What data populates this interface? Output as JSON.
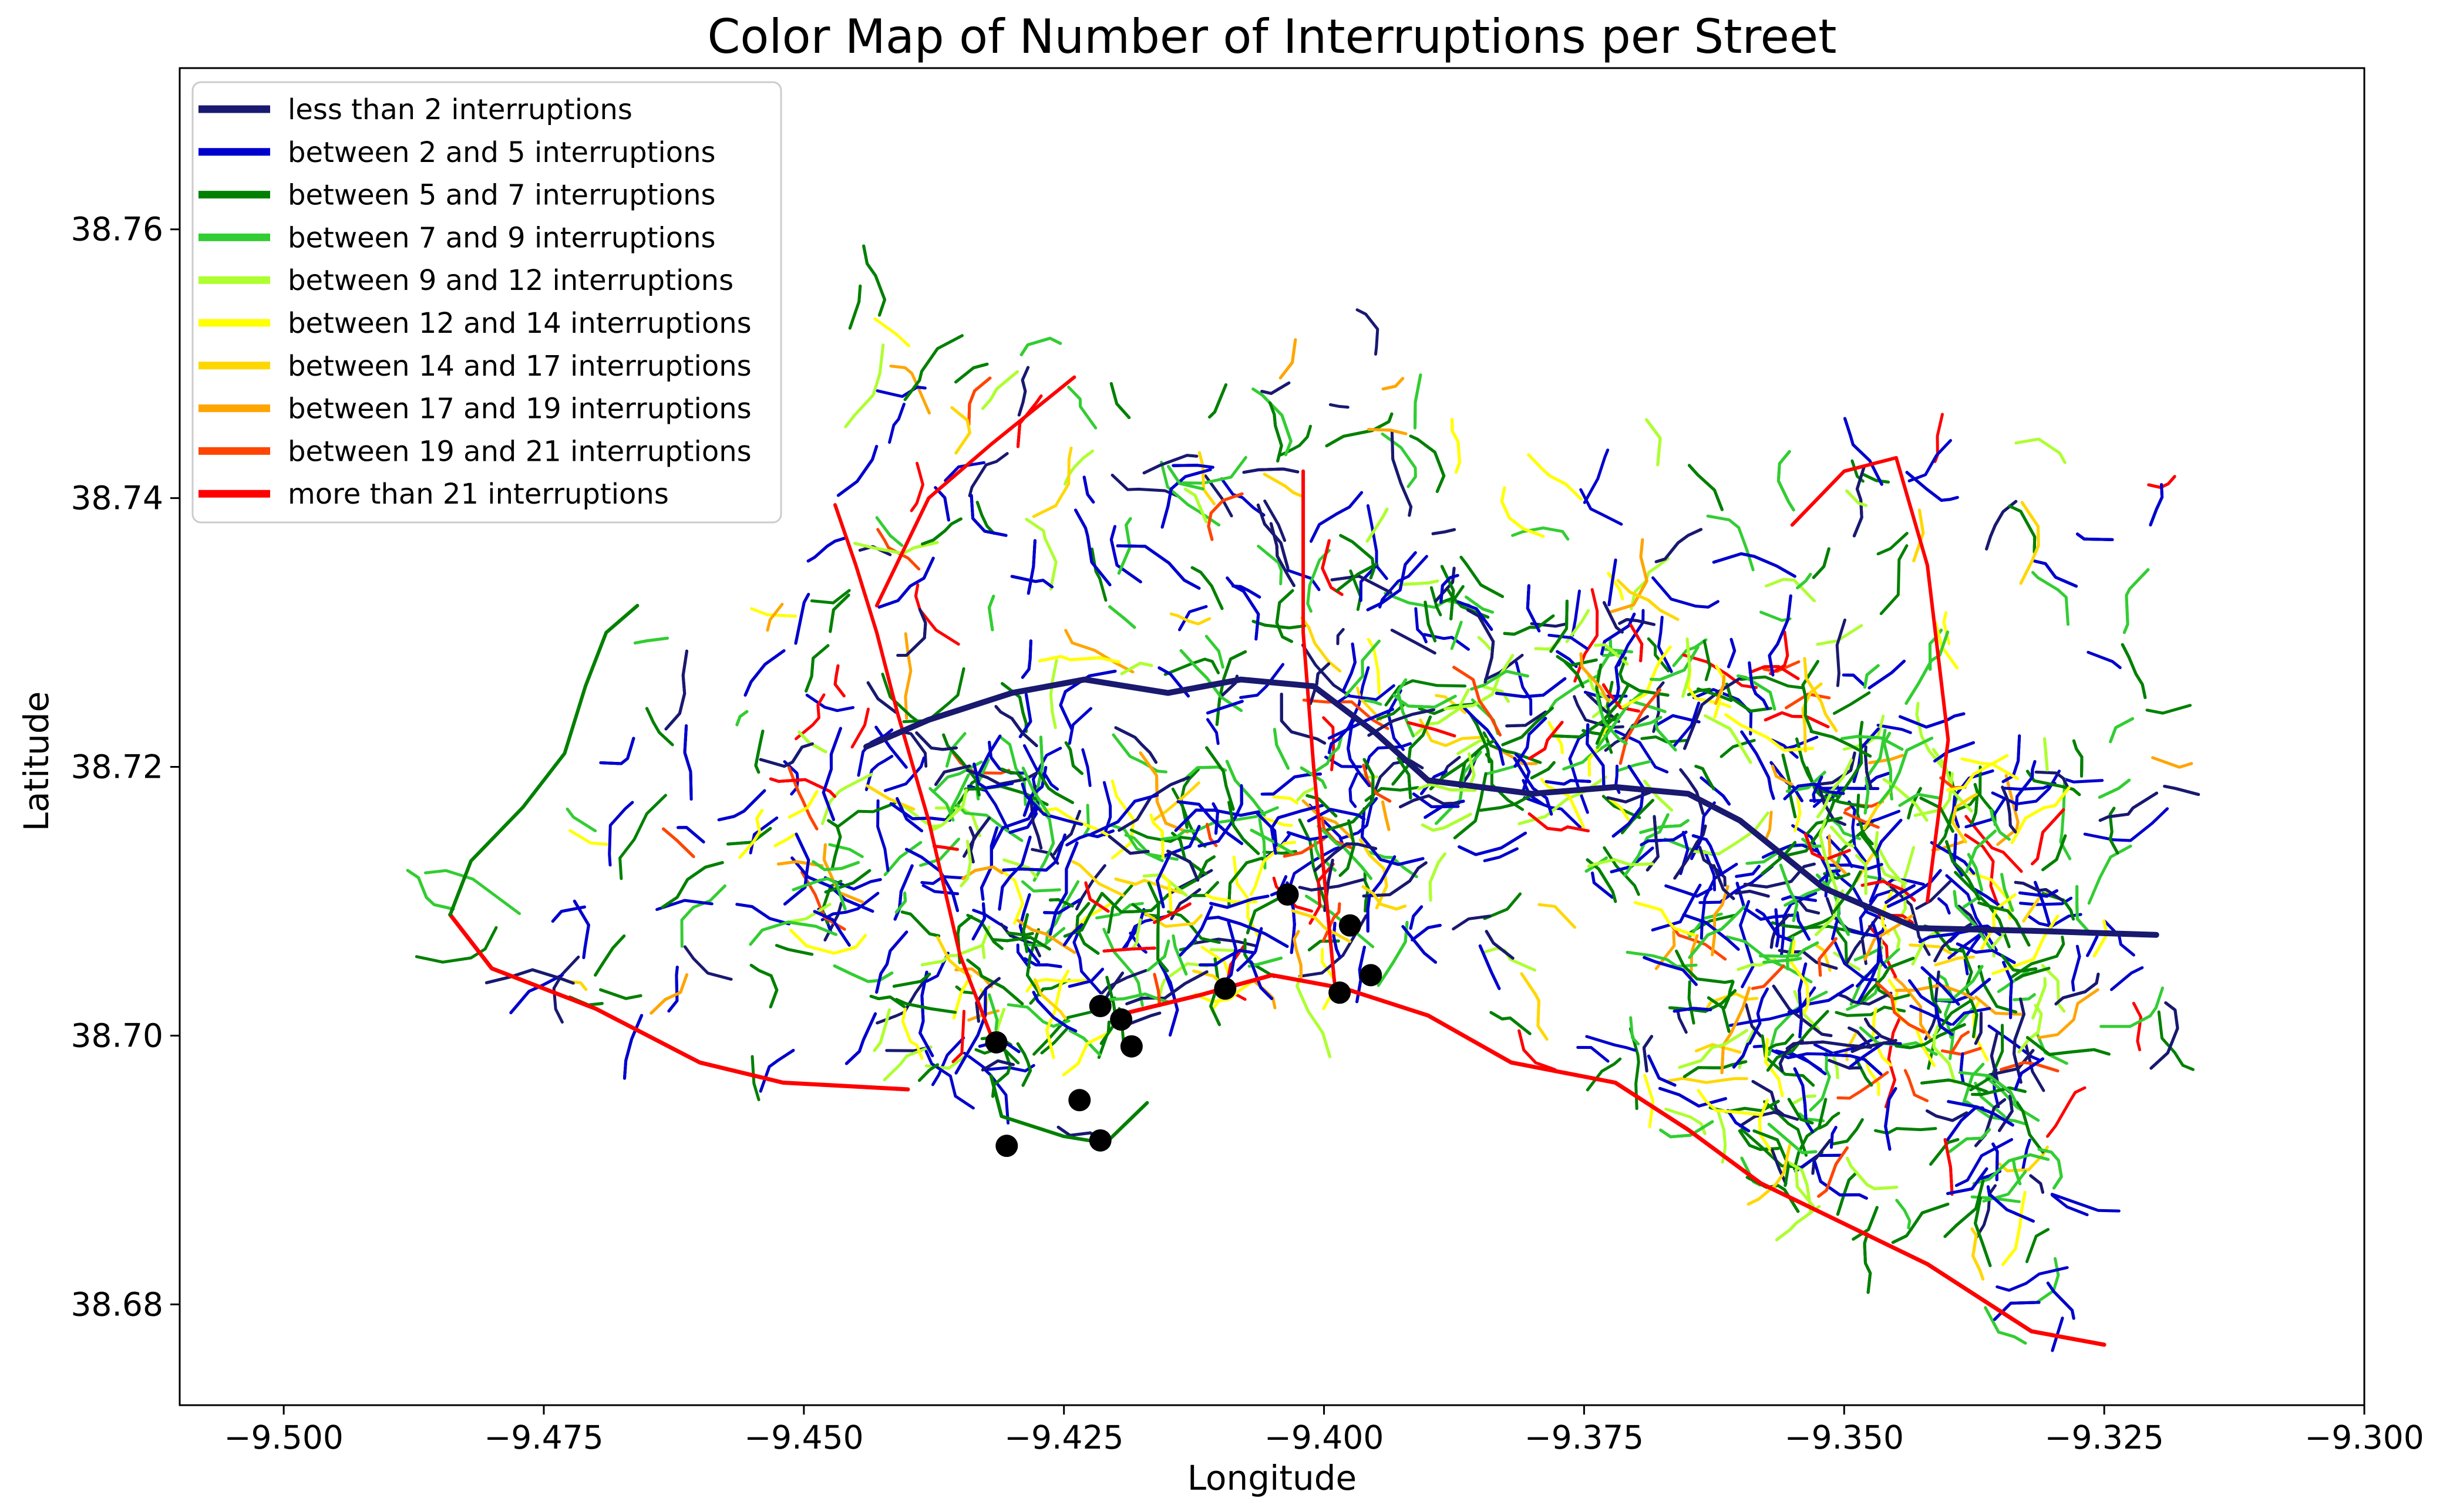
{
  "chart_data": {
    "type": "map",
    "title": "Color Map of Number of Interruptions per Street",
    "xlabel": "Longitude",
    "ylabel": "Latitude",
    "xlim": [
      -9.51,
      -9.3
    ],
    "ylim": [
      38.6725,
      38.772
    ],
    "x_ticks": [
      {
        "value": -9.5,
        "label": "−9.500"
      },
      {
        "value": -9.475,
        "label": "−9.475"
      },
      {
        "value": -9.45,
        "label": "−9.450"
      },
      {
        "value": -9.425,
        "label": "−9.425"
      },
      {
        "value": -9.4,
        "label": "−9.400"
      },
      {
        "value": -9.375,
        "label": "−9.375"
      },
      {
        "value": -9.35,
        "label": "−9.350"
      },
      {
        "value": -9.325,
        "label": "−9.325"
      },
      {
        "value": -9.3,
        "label": "−9.300"
      }
    ],
    "y_ticks": [
      {
        "value": 38.68,
        "label": "38.68"
      },
      {
        "value": 38.7,
        "label": "38.70"
      },
      {
        "value": 38.72,
        "label": "38.72"
      },
      {
        "value": 38.74,
        "label": "38.74"
      },
      {
        "value": 38.76,
        "label": "38.76"
      }
    ],
    "grid": false,
    "legend_position": "top-left",
    "legend": [
      {
        "label": "less than 2 interruptions",
        "color": "#191970"
      },
      {
        "label": "between 2 and 5 interruptions",
        "color": "#0000cd"
      },
      {
        "label": "between 5 and 7 interruptions",
        "color": "#008000"
      },
      {
        "label": "between 7 and 9 interruptions",
        "color": "#32cd32"
      },
      {
        "label": "between 9 and 12 interruptions",
        "color": "#adff2f"
      },
      {
        "label": "between 12 and 14 interruptions",
        "color": "#ffff00"
      },
      {
        "label": "between 14 and 17 interruptions",
        "color": "#ffd700"
      },
      {
        "label": "between 17 and 19 interruptions",
        "color": "#ffa500"
      },
      {
        "label": "between 19 and 21 interruptions",
        "color": "#ff4500"
      },
      {
        "label": "more than 21 interruptions",
        "color": "#ff0000"
      }
    ],
    "points": [
      {
        "lon": -9.4315,
        "lat": 38.6995
      },
      {
        "lon": -9.4305,
        "lat": 38.6918
      },
      {
        "lon": -9.4235,
        "lat": 38.6952
      },
      {
        "lon": -9.4215,
        "lat": 38.6922
      },
      {
        "lon": -9.4215,
        "lat": 38.7022
      },
      {
        "lon": -9.4195,
        "lat": 38.7012
      },
      {
        "lon": -9.4185,
        "lat": 38.6992
      },
      {
        "lon": -9.4095,
        "lat": 38.7035
      },
      {
        "lon": -9.4035,
        "lat": 38.7105
      },
      {
        "lon": -9.3985,
        "lat": 38.7032
      },
      {
        "lon": -9.3975,
        "lat": 38.7082
      },
      {
        "lon": -9.3955,
        "lat": 38.7045
      }
    ]
  }
}
